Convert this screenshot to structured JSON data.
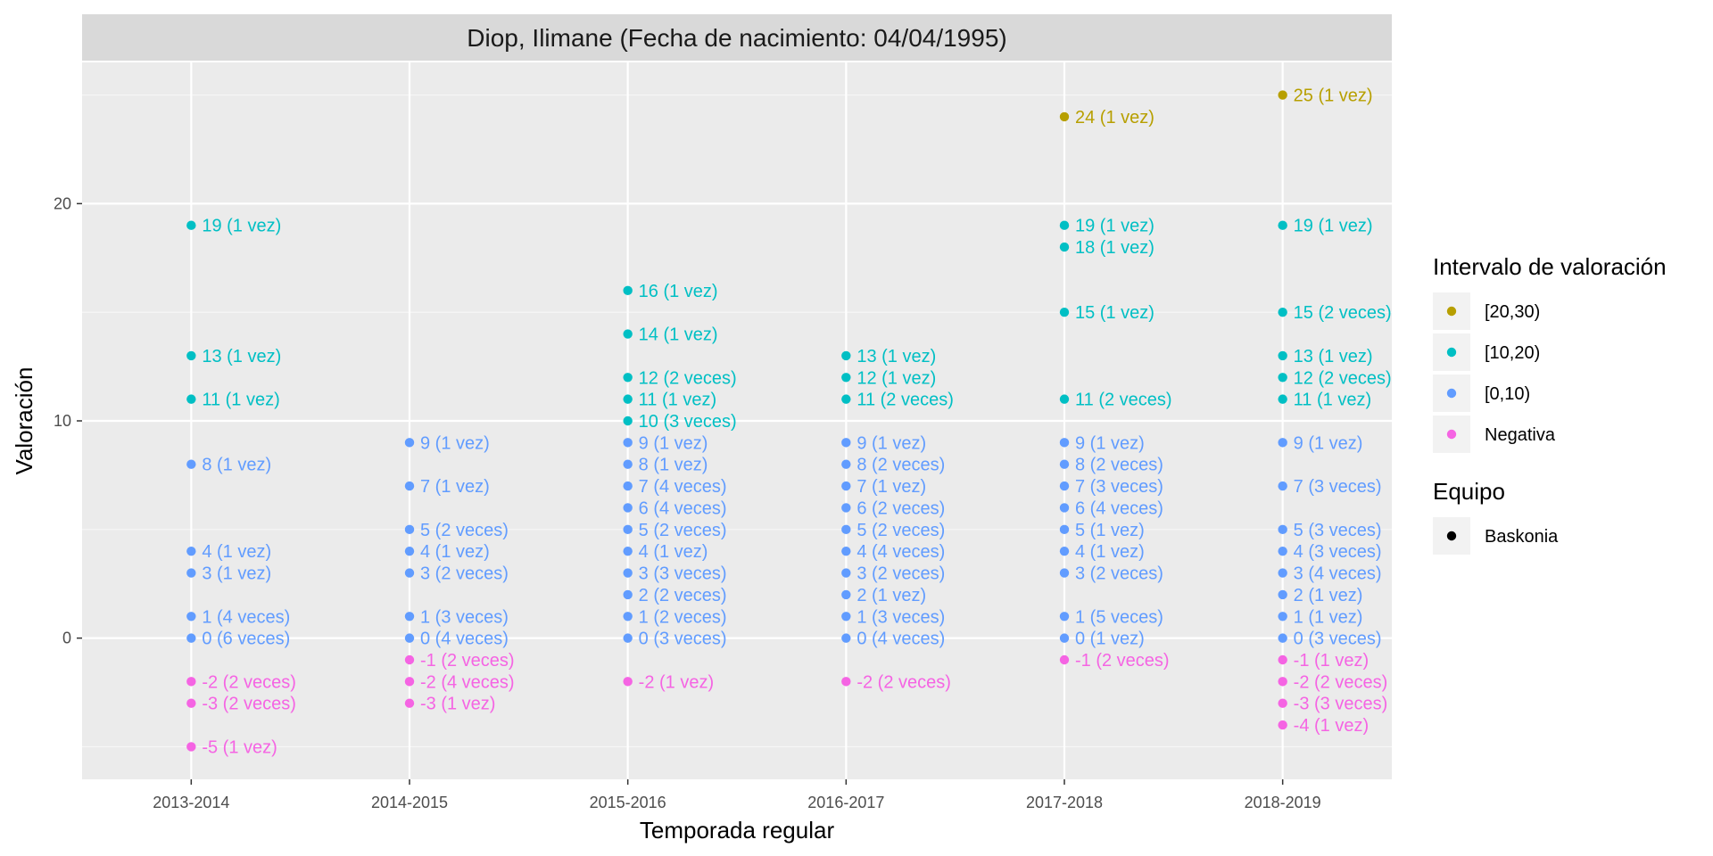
{
  "chart_data": {
    "type": "scatter",
    "title": "Diop, Ilimane (Fecha de nacimiento: 04/04/1995)",
    "xlabel": "Temporada regular",
    "ylabel": "Valoración",
    "categories": [
      "2013-2014",
      "2014-2015",
      "2015-2016",
      "2016-2017",
      "2017-2018",
      "2018-2019"
    ],
    "ylim": [
      -6.5,
      26.5
    ],
    "yticks": [
      0,
      10,
      20
    ],
    "grid": true,
    "legend_position": "right",
    "legends": [
      {
        "title": "Intervalo de valoración",
        "items": [
          {
            "label": "[20,30)",
            "color": "#B79F00"
          },
          {
            "label": "[10,20)",
            "color": "#00BFC4"
          },
          {
            "label": "[0,10)",
            "color": "#619CFF"
          },
          {
            "label": "Negativa",
            "color": "#F564E3"
          }
        ]
      },
      {
        "title": "Equipo",
        "items": [
          {
            "label": "Baskonia",
            "color": "#000000"
          }
        ]
      }
    ],
    "series": [
      {
        "name": "[20,30)",
        "color": "#B79F00",
        "points": [
          {
            "x": "2017-2018",
            "y": 24,
            "label": "24 (1 vez)"
          },
          {
            "x": "2018-2019",
            "y": 25,
            "label": "25 (1 vez)"
          }
        ]
      },
      {
        "name": "[10,20)",
        "color": "#00BFC4",
        "points": [
          {
            "x": "2013-2014",
            "y": 19,
            "label": "19 (1 vez)"
          },
          {
            "x": "2013-2014",
            "y": 13,
            "label": "13 (1 vez)"
          },
          {
            "x": "2013-2014",
            "y": 11,
            "label": "11 (1 vez)"
          },
          {
            "x": "2015-2016",
            "y": 16,
            "label": "16 (1 vez)"
          },
          {
            "x": "2015-2016",
            "y": 14,
            "label": "14 (1 vez)"
          },
          {
            "x": "2015-2016",
            "y": 12,
            "label": "12 (2 veces)"
          },
          {
            "x": "2015-2016",
            "y": 11,
            "label": "11 (1 vez)"
          },
          {
            "x": "2015-2016",
            "y": 10,
            "label": "10 (3 veces)"
          },
          {
            "x": "2016-2017",
            "y": 13,
            "label": "13 (1 vez)"
          },
          {
            "x": "2016-2017",
            "y": 12,
            "label": "12 (1 vez)"
          },
          {
            "x": "2016-2017",
            "y": 11,
            "label": "11 (2 veces)"
          },
          {
            "x": "2017-2018",
            "y": 19,
            "label": "19 (1 vez)"
          },
          {
            "x": "2017-2018",
            "y": 18,
            "label": "18 (1 vez)"
          },
          {
            "x": "2017-2018",
            "y": 15,
            "label": "15 (1 vez)"
          },
          {
            "x": "2017-2018",
            "y": 11,
            "label": "11 (2 veces)"
          },
          {
            "x": "2018-2019",
            "y": 19,
            "label": "19 (1 vez)"
          },
          {
            "x": "2018-2019",
            "y": 15,
            "label": "15 (2 veces)"
          },
          {
            "x": "2018-2019",
            "y": 13,
            "label": "13 (1 vez)"
          },
          {
            "x": "2018-2019",
            "y": 12,
            "label": "12 (2 veces)"
          },
          {
            "x": "2018-2019",
            "y": 11,
            "label": "11 (1 vez)"
          }
        ]
      },
      {
        "name": "[0,10)",
        "color": "#619CFF",
        "points": [
          {
            "x": "2013-2014",
            "y": 8,
            "label": "8 (1 vez)"
          },
          {
            "x": "2013-2014",
            "y": 4,
            "label": "4 (1 vez)"
          },
          {
            "x": "2013-2014",
            "y": 3,
            "label": "3 (1 vez)"
          },
          {
            "x": "2013-2014",
            "y": 1,
            "label": "1 (4 veces)"
          },
          {
            "x": "2013-2014",
            "y": 0,
            "label": "0 (6 veces)"
          },
          {
            "x": "2014-2015",
            "y": 9,
            "label": "9 (1 vez)"
          },
          {
            "x": "2014-2015",
            "y": 7,
            "label": "7 (1 vez)"
          },
          {
            "x": "2014-2015",
            "y": 5,
            "label": "5 (2 veces)"
          },
          {
            "x": "2014-2015",
            "y": 4,
            "label": "4 (1 vez)"
          },
          {
            "x": "2014-2015",
            "y": 3,
            "label": "3 (2 veces)"
          },
          {
            "x": "2014-2015",
            "y": 1,
            "label": "1 (3 veces)"
          },
          {
            "x": "2014-2015",
            "y": 0,
            "label": "0 (4 veces)"
          },
          {
            "x": "2015-2016",
            "y": 9,
            "label": "9 (1 vez)"
          },
          {
            "x": "2015-2016",
            "y": 8,
            "label": "8 (1 vez)"
          },
          {
            "x": "2015-2016",
            "y": 7,
            "label": "7 (4 veces)"
          },
          {
            "x": "2015-2016",
            "y": 6,
            "label": "6 (4 veces)"
          },
          {
            "x": "2015-2016",
            "y": 5,
            "label": "5 (2 veces)"
          },
          {
            "x": "2015-2016",
            "y": 4,
            "label": "4 (1 vez)"
          },
          {
            "x": "2015-2016",
            "y": 3,
            "label": "3 (3 veces)"
          },
          {
            "x": "2015-2016",
            "y": 2,
            "label": "2 (2 veces)"
          },
          {
            "x": "2015-2016",
            "y": 1,
            "label": "1 (2 veces)"
          },
          {
            "x": "2015-2016",
            "y": 0,
            "label": "0 (3 veces)"
          },
          {
            "x": "2016-2017",
            "y": 9,
            "label": "9 (1 vez)"
          },
          {
            "x": "2016-2017",
            "y": 8,
            "label": "8 (2 veces)"
          },
          {
            "x": "2016-2017",
            "y": 7,
            "label": "7 (1 vez)"
          },
          {
            "x": "2016-2017",
            "y": 6,
            "label": "6 (2 veces)"
          },
          {
            "x": "2016-2017",
            "y": 5,
            "label": "5 (2 veces)"
          },
          {
            "x": "2016-2017",
            "y": 4,
            "label": "4 (4 veces)"
          },
          {
            "x": "2016-2017",
            "y": 3,
            "label": "3 (2 veces)"
          },
          {
            "x": "2016-2017",
            "y": 2,
            "label": "2 (1 vez)"
          },
          {
            "x": "2016-2017",
            "y": 1,
            "label": "1 (3 veces)"
          },
          {
            "x": "2016-2017",
            "y": 0,
            "label": "0 (4 veces)"
          },
          {
            "x": "2017-2018",
            "y": 9,
            "label": "9 (1 vez)"
          },
          {
            "x": "2017-2018",
            "y": 8,
            "label": "8 (2 veces)"
          },
          {
            "x": "2017-2018",
            "y": 7,
            "label": "7 (3 veces)"
          },
          {
            "x": "2017-2018",
            "y": 6,
            "label": "6 (4 veces)"
          },
          {
            "x": "2017-2018",
            "y": 5,
            "label": "5 (1 vez)"
          },
          {
            "x": "2017-2018",
            "y": 4,
            "label": "4 (1 vez)"
          },
          {
            "x": "2017-2018",
            "y": 3,
            "label": "3 (2 veces)"
          },
          {
            "x": "2017-2018",
            "y": 1,
            "label": "1 (5 veces)"
          },
          {
            "x": "2017-2018",
            "y": 0,
            "label": "0 (1 vez)"
          },
          {
            "x": "2018-2019",
            "y": 9,
            "label": "9 (1 vez)"
          },
          {
            "x": "2018-2019",
            "y": 7,
            "label": "7 (3 veces)"
          },
          {
            "x": "2018-2019",
            "y": 5,
            "label": "5 (3 veces)"
          },
          {
            "x": "2018-2019",
            "y": 4,
            "label": "4 (3 veces)"
          },
          {
            "x": "2018-2019",
            "y": 3,
            "label": "3 (4 veces)"
          },
          {
            "x": "2018-2019",
            "y": 2,
            "label": "2 (1 vez)"
          },
          {
            "x": "2018-2019",
            "y": 1,
            "label": "1 (1 vez)"
          },
          {
            "x": "2018-2019",
            "y": 0,
            "label": "0 (3 veces)"
          }
        ]
      },
      {
        "name": "Negativa",
        "color": "#F564E3",
        "points": [
          {
            "x": "2013-2014",
            "y": -2,
            "label": "-2 (2 veces)"
          },
          {
            "x": "2013-2014",
            "y": -3,
            "label": "-3 (2 veces)"
          },
          {
            "x": "2013-2014",
            "y": -5,
            "label": "-5 (1 vez)"
          },
          {
            "x": "2014-2015",
            "y": -1,
            "label": "-1 (2 veces)"
          },
          {
            "x": "2014-2015",
            "y": -2,
            "label": "-2 (4 veces)"
          },
          {
            "x": "2014-2015",
            "y": -3,
            "label": "-3 (1 vez)"
          },
          {
            "x": "2015-2016",
            "y": -2,
            "label": "-2 (1 vez)"
          },
          {
            "x": "2016-2017",
            "y": -2,
            "label": "-2 (2 veces)"
          },
          {
            "x": "2017-2018",
            "y": -1,
            "label": "-1 (2 veces)"
          },
          {
            "x": "2018-2019",
            "y": -1,
            "label": "-1 (1 vez)"
          },
          {
            "x": "2018-2019",
            "y": -2,
            "label": "-2 (2 veces)"
          },
          {
            "x": "2018-2019",
            "y": -3,
            "label": "-3 (3 veces)"
          },
          {
            "x": "2018-2019",
            "y": -4,
            "label": "-4 (1 vez)"
          }
        ]
      }
    ]
  }
}
